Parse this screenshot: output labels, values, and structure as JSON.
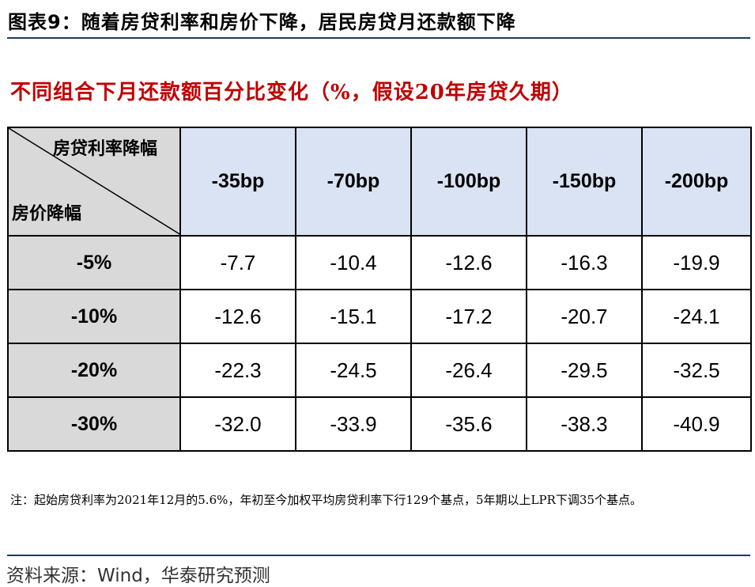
{
  "figure": {
    "label": "图表9：",
    "title": "随着房贷利率和房价下降，居民房贷月还款额下降"
  },
  "chart_data": {
    "type": "table",
    "title": "不同组合下月还款额百分比变化（%，假设20年房贷久期）",
    "corner_top": "房贷利率降幅",
    "corner_bottom": "房价降幅",
    "columns": [
      "-35bp",
      "-70bp",
      "-100bp",
      "-150bp",
      "-200bp"
    ],
    "rows": [
      {
        "label": "-5%",
        "values": [
          "-7.7",
          "-10.4",
          "-12.6",
          "-16.3",
          "-19.9"
        ]
      },
      {
        "label": "-10%",
        "values": [
          "-12.6",
          "-15.1",
          "-17.2",
          "-20.7",
          "-24.1"
        ]
      },
      {
        "label": "-20%",
        "values": [
          "-22.3",
          "-24.5",
          "-26.4",
          "-29.5",
          "-32.5"
        ]
      },
      {
        "label": "-30%",
        "values": [
          "-32.0",
          "-33.9",
          "-35.6",
          "-38.3",
          "-40.9"
        ]
      }
    ]
  },
  "note": "注：起始房贷利率为2021年12月的5.6%，年初至今加权平均房贷利率下行129个基点，5年期以上LPR下调35个基点。",
  "source": "资料来源：Wind，华泰研究预测",
  "colors": {
    "subtitle": "#c00000",
    "header_fill": "#dae3f3",
    "corner_fill": "#d9d9d9",
    "rule": "#1f3864"
  }
}
